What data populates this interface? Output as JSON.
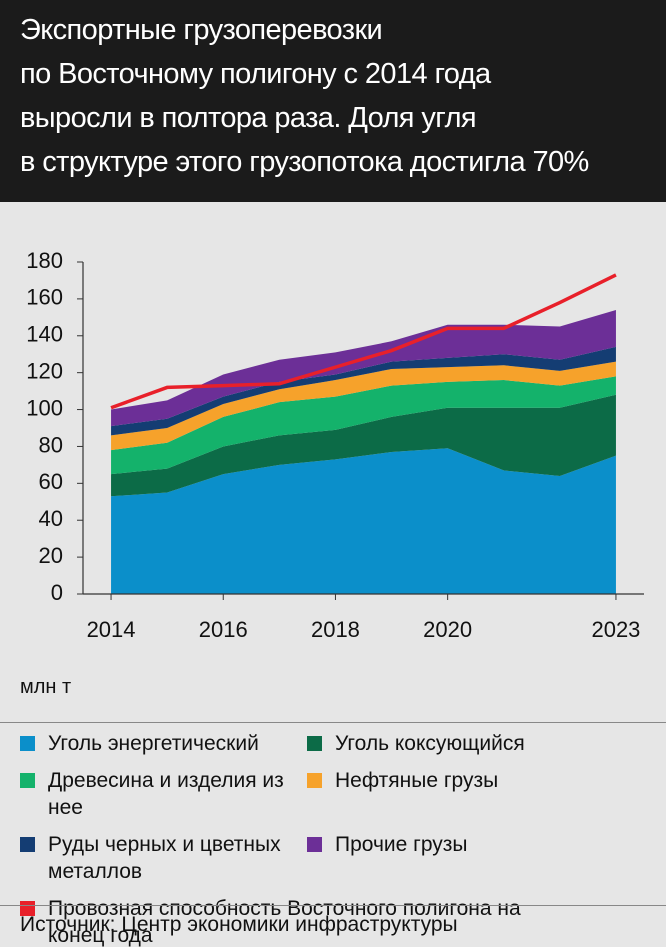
{
  "chart_data": {
    "type": "area",
    "title": [
      "Экспортные грузоперевозки",
      "по Восточному полигону с 2014 года",
      "выросли в полтора раза. Доля угля",
      "в структуре этого грузопотока достигла 70%"
    ],
    "unit_label": "млн т",
    "source": "Источник: Центр экономики инфраструктуры",
    "x": [
      2014,
      2015,
      2016,
      2017,
      2018,
      2019,
      2020,
      2021,
      2022,
      2023
    ],
    "xlim": [
      2013.5,
      2023.5
    ],
    "xticks": [
      2014,
      2016,
      2018,
      2020,
      2023
    ],
    "ylim": [
      0,
      180
    ],
    "yticks": [
      0,
      20,
      40,
      60,
      80,
      100,
      120,
      140,
      160,
      180
    ],
    "series": [
      {
        "name": "Уголь энергетический",
        "color": "#0b8fca",
        "values": [
          53,
          55,
          65,
          70,
          73,
          77,
          79,
          67,
          64,
          75
        ]
      },
      {
        "name": "Уголь коксующийся",
        "color": "#0c6b47",
        "values": [
          12,
          13,
          15,
          16,
          16,
          19,
          22,
          34,
          37,
          33
        ]
      },
      {
        "name": "Древесина и изделия из нее",
        "color": "#14b26b",
        "values": [
          13,
          14,
          16,
          18,
          18,
          17,
          14,
          15,
          12,
          10
        ]
      },
      {
        "name": "Нефтяные грузы",
        "color": "#f6a22b",
        "values": [
          8,
          8,
          7,
          7,
          9,
          9,
          8,
          8,
          8,
          8
        ]
      },
      {
        "name": "Руды черных и цветных металлов",
        "color": "#143d73",
        "values": [
          5,
          5,
          4,
          4,
          3,
          4,
          5,
          6,
          6,
          8
        ]
      },
      {
        "name": "Прочие грузы",
        "color": "#6c2f97",
        "values": [
          9,
          10,
          12,
          12,
          12,
          11,
          18,
          16,
          18,
          20
        ]
      },
      {
        "name": "Провозная способность Восточного полигона на конец года",
        "color": "#e8202a",
        "type": "line",
        "values": [
          101,
          112,
          113,
          114,
          123,
          132,
          144,
          144,
          158,
          173
        ]
      }
    ]
  }
}
